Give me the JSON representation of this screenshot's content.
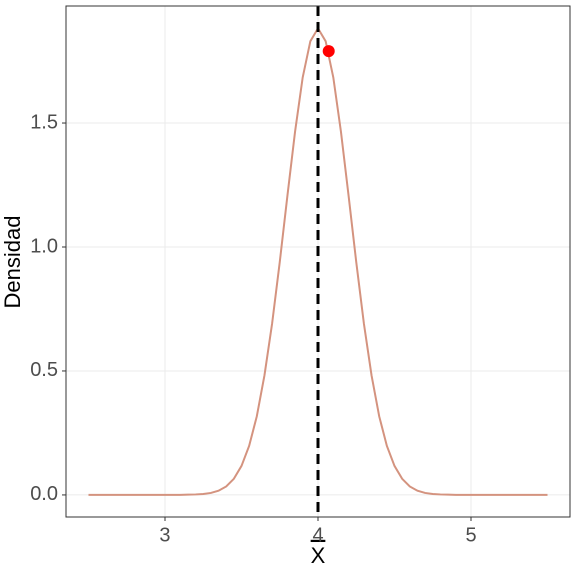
{
  "chart_data": {
    "type": "line",
    "x_label": "X",
    "y_label": "Densidad",
    "x": [
      2.5,
      3.0,
      3.1,
      3.15,
      3.2,
      3.25,
      3.3,
      3.35,
      3.4,
      3.45,
      3.5,
      3.55,
      3.6,
      3.65,
      3.7,
      3.75,
      3.8,
      3.85,
      3.9,
      3.95,
      4.0,
      4.05,
      4.1,
      4.15,
      4.2,
      4.25,
      4.3,
      4.35,
      4.4,
      4.45,
      4.5,
      4.55,
      4.6,
      4.65,
      4.7,
      4.75,
      4.8,
      4.85,
      4.9,
      5.0,
      5.5
    ],
    "values": [
      0,
      0,
      0,
      0.001,
      0.002,
      0.004,
      0.008,
      0.017,
      0.034,
      0.065,
      0.117,
      0.198,
      0.317,
      0.482,
      0.691,
      0.939,
      1.206,
      1.465,
      1.684,
      1.83,
      1.882,
      1.83,
      1.684,
      1.465,
      1.206,
      0.939,
      0.691,
      0.482,
      0.317,
      0.198,
      0.117,
      0.065,
      0.034,
      0.017,
      0.008,
      0.004,
      0.002,
      0.001,
      0,
      0,
      0
    ],
    "color": "#d4937f",
    "vline": 4,
    "point": {
      "x": 4.07,
      "y": 1.79,
      "color": "#ff0000"
    },
    "xlim": [
      2.353,
      5.647
    ],
    "ylim": [
      -0.089,
      1.972
    ],
    "xticks": [
      3,
      4,
      5
    ],
    "yticks": [
      {
        "value": 0,
        "label": "0.0"
      },
      {
        "value": 0.5,
        "label": "0.5"
      },
      {
        "value": 1,
        "label": "1.0"
      },
      {
        "value": 1.5,
        "label": "1.5"
      }
    ],
    "grid": true
  }
}
